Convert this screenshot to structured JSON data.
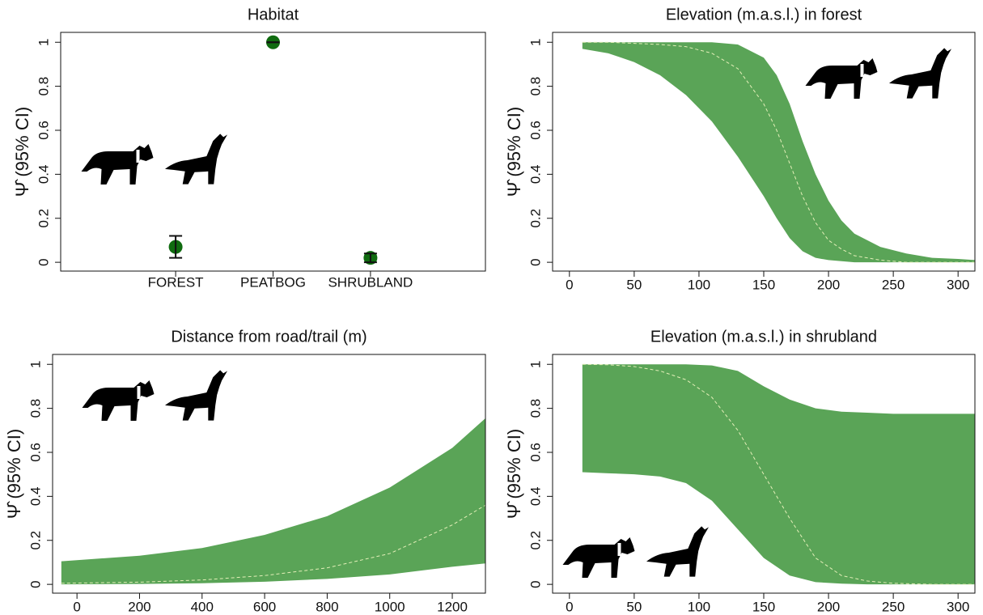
{
  "chart_data": [
    {
      "type": "errorbar",
      "title": "Habitat",
      "y_label": "Ψ̂ (95% CI)",
      "categories": [
        "FOREST",
        "PEATBOG",
        "SHRUBLAND"
      ],
      "values": [
        0.07,
        1.0,
        0.02
      ],
      "ci_lower": [
        0.02,
        1.0,
        0.0
      ],
      "ci_upper": [
        0.12,
        1.0,
        0.04
      ],
      "color": "#0f6b0f",
      "ylim": [
        -0.04,
        1.045
      ],
      "yticks": [
        0.0,
        0.2,
        0.4,
        0.6,
        0.8,
        1.0
      ]
    },
    {
      "type": "band",
      "title": "Elevation (m.a.s.l.) in forest",
      "y_label": "Ψ̂ (95% CI)",
      "x": [
        10,
        30,
        50,
        70,
        90,
        110,
        130,
        150,
        160,
        170,
        180,
        190,
        200,
        210,
        220,
        240,
        260,
        280,
        300,
        313
      ],
      "values": [
        1.0,
        1.0,
        0.995,
        0.99,
        0.98,
        0.95,
        0.88,
        0.72,
        0.6,
        0.45,
        0.3,
        0.18,
        0.1,
        0.06,
        0.03,
        0.01,
        0,
        0,
        0,
        0
      ],
      "lower": [
        0.97,
        0.95,
        0.91,
        0.85,
        0.76,
        0.64,
        0.48,
        0.3,
        0.2,
        0.11,
        0.05,
        0.02,
        0.01,
        0.005,
        0,
        0,
        0,
        0,
        0,
        0
      ],
      "upper": [
        1.0,
        1.0,
        1.0,
        1.0,
        1.0,
        1.0,
        0.99,
        0.93,
        0.85,
        0.72,
        0.55,
        0.4,
        0.28,
        0.19,
        0.13,
        0.07,
        0.04,
        0.02,
        0.015,
        0.01
      ],
      "color": "#5aa457",
      "line_color": "#e4efb8",
      "xlim": [
        -13,
        313
      ],
      "xticks": [
        0,
        50,
        100,
        150,
        200,
        250,
        300
      ],
      "ylim": [
        -0.04,
        1.045
      ],
      "yticks": [
        0.0,
        0.2,
        0.4,
        0.6,
        0.8,
        1.0
      ]
    },
    {
      "type": "band",
      "title": "Distance from road/trail (m)",
      "y_label": "Ψ̂ (95% CI)",
      "x": [
        -50,
        200,
        400,
        600,
        800,
        1000,
        1200,
        1306
      ],
      "values": [
        0.005,
        0.01,
        0.02,
        0.04,
        0.075,
        0.14,
        0.27,
        0.36
      ],
      "lower": [
        0.0,
        0.002,
        0.005,
        0.012,
        0.025,
        0.045,
        0.08,
        0.095
      ],
      "upper": [
        0.105,
        0.13,
        0.165,
        0.225,
        0.31,
        0.44,
        0.62,
        0.755
      ],
      "color": "#5aa457",
      "line_color": "#e4efb8",
      "xlim": [
        -78,
        1306
      ],
      "xticks": [
        0,
        200,
        400,
        600,
        800,
        1000,
        1200
      ],
      "ylim": [
        -0.04,
        1.045
      ],
      "yticks": [
        0.0,
        0.2,
        0.4,
        0.6,
        0.8,
        1.0
      ]
    },
    {
      "type": "band",
      "title": "Elevation (m.a.s.l.) in shrubland",
      "y_label": "Ψ̂ (95% CI)",
      "x": [
        10,
        30,
        50,
        70,
        90,
        110,
        130,
        150,
        170,
        190,
        210,
        230,
        250,
        280,
        313
      ],
      "values": [
        1,
        0.998,
        0.99,
        0.97,
        0.93,
        0.85,
        0.7,
        0.5,
        0.3,
        0.12,
        0.04,
        0.015,
        0.005,
        0,
        0
      ],
      "lower": [
        0.51,
        0.505,
        0.5,
        0.49,
        0.46,
        0.38,
        0.25,
        0.12,
        0.04,
        0.01,
        0.003,
        0,
        0,
        0,
        0
      ],
      "upper": [
        1,
        1,
        1,
        1,
        1,
        0.995,
        0.97,
        0.9,
        0.84,
        0.8,
        0.785,
        0.78,
        0.775,
        0.775,
        0.775
      ],
      "color": "#5aa457",
      "line_color": "#e4efb8",
      "xlim": [
        -13,
        313
      ],
      "xticks": [
        0,
        50,
        100,
        150,
        200,
        250,
        300
      ],
      "ylim": [
        -0.04,
        1.045
      ],
      "yticks": [
        0.0,
        0.2,
        0.4,
        0.6,
        0.8,
        1.0
      ]
    }
  ]
}
